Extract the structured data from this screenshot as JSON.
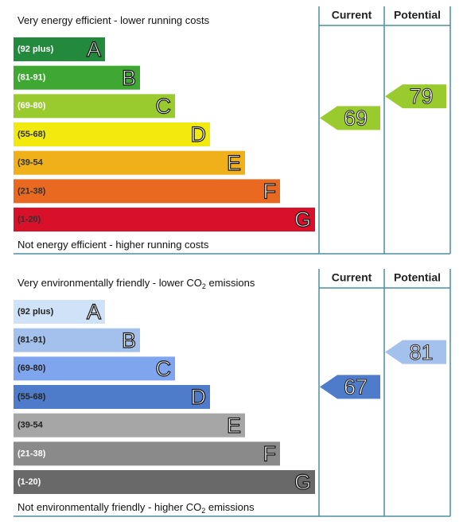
{
  "chart_data": [
    {
      "type": "rating-bands",
      "top_label": {
        "text": "Very energy efficient - lower running costs"
      },
      "bottom_label": {
        "text": "Not energy efficient - higher running costs"
      },
      "bands": [
        {
          "range": "(92 plus)",
          "letter": "A",
          "color": "#238a3d",
          "text_color": "#ffffff"
        },
        {
          "range": "(81-91)",
          "letter": "B",
          "color": "#3ea832",
          "text_color": "#ffffff"
        },
        {
          "range": "(69-80)",
          "letter": "C",
          "color": "#9acb2e",
          "text_color": "#ffffff"
        },
        {
          "range": "(55-68)",
          "letter": "D",
          "color": "#f2ea0f",
          "text_color": "#333333"
        },
        {
          "range": "(39-54",
          "letter": "E",
          "color": "#f0b01a",
          "text_color": "#333333"
        },
        {
          "range": "(21-38)",
          "letter": "F",
          "color": "#e8691f",
          "text_color": "#333333"
        },
        {
          "range": "(1-20)",
          "letter": "G",
          "color": "#d8102a",
          "text_color": "#333333"
        }
      ],
      "series": [
        {
          "name": "Current",
          "values": [
            69
          ]
        },
        {
          "name": "Potential",
          "values": [
            79
          ]
        }
      ]
    },
    {
      "type": "rating-bands",
      "top_label": {
        "text": "Very environmentally friendly - lower CO",
        "sub": "2",
        "tail": " emissions"
      },
      "bottom_label": {
        "text": "Not environmentally friendly - higher CO",
        "sub": "2",
        "tail": " emissions"
      },
      "bands": [
        {
          "range": "(92 plus)",
          "letter": "A",
          "color": "#cfe2f7",
          "text_color": "#222222"
        },
        {
          "range": "(81-91)",
          "letter": "B",
          "color": "#a3c1ec",
          "text_color": "#222222"
        },
        {
          "range": "(69-80)",
          "letter": "C",
          "color": "#7fa5ee",
          "text_color": "#222222"
        },
        {
          "range": "(55-68)",
          "letter": "D",
          "color": "#4e7cca",
          "text_color": "#222222"
        },
        {
          "range": "(39-54",
          "letter": "E",
          "color": "#a6a6a6",
          "text_color": "#222222"
        },
        {
          "range": "(21-38)",
          "letter": "F",
          "color": "#8a8a8a",
          "text_color": "#ffffff"
        },
        {
          "range": "(1-20)",
          "letter": "G",
          "color": "#696969",
          "text_color": "#ffffff"
        }
      ],
      "series": [
        {
          "name": "Current",
          "values": [
            67
          ]
        },
        {
          "name": "Potential",
          "values": [
            81
          ]
        }
      ]
    }
  ]
}
